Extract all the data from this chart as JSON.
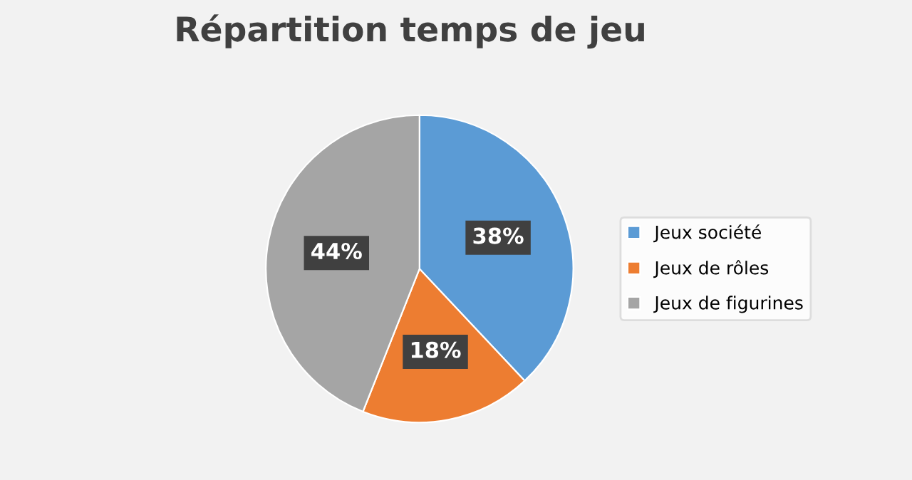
{
  "chart_data": {
    "type": "pie",
    "title": "Répartition temps de jeu",
    "categories": [
      "Jeux société",
      "Jeux de rôles",
      "Jeux de figurines"
    ],
    "values": [
      38,
      18,
      44
    ],
    "colors": [
      "#5b9bd5",
      "#ed7d31",
      "#a5a5a5"
    ],
    "value_labels": [
      "38%",
      "18%",
      "44%"
    ],
    "legend": "right"
  }
}
